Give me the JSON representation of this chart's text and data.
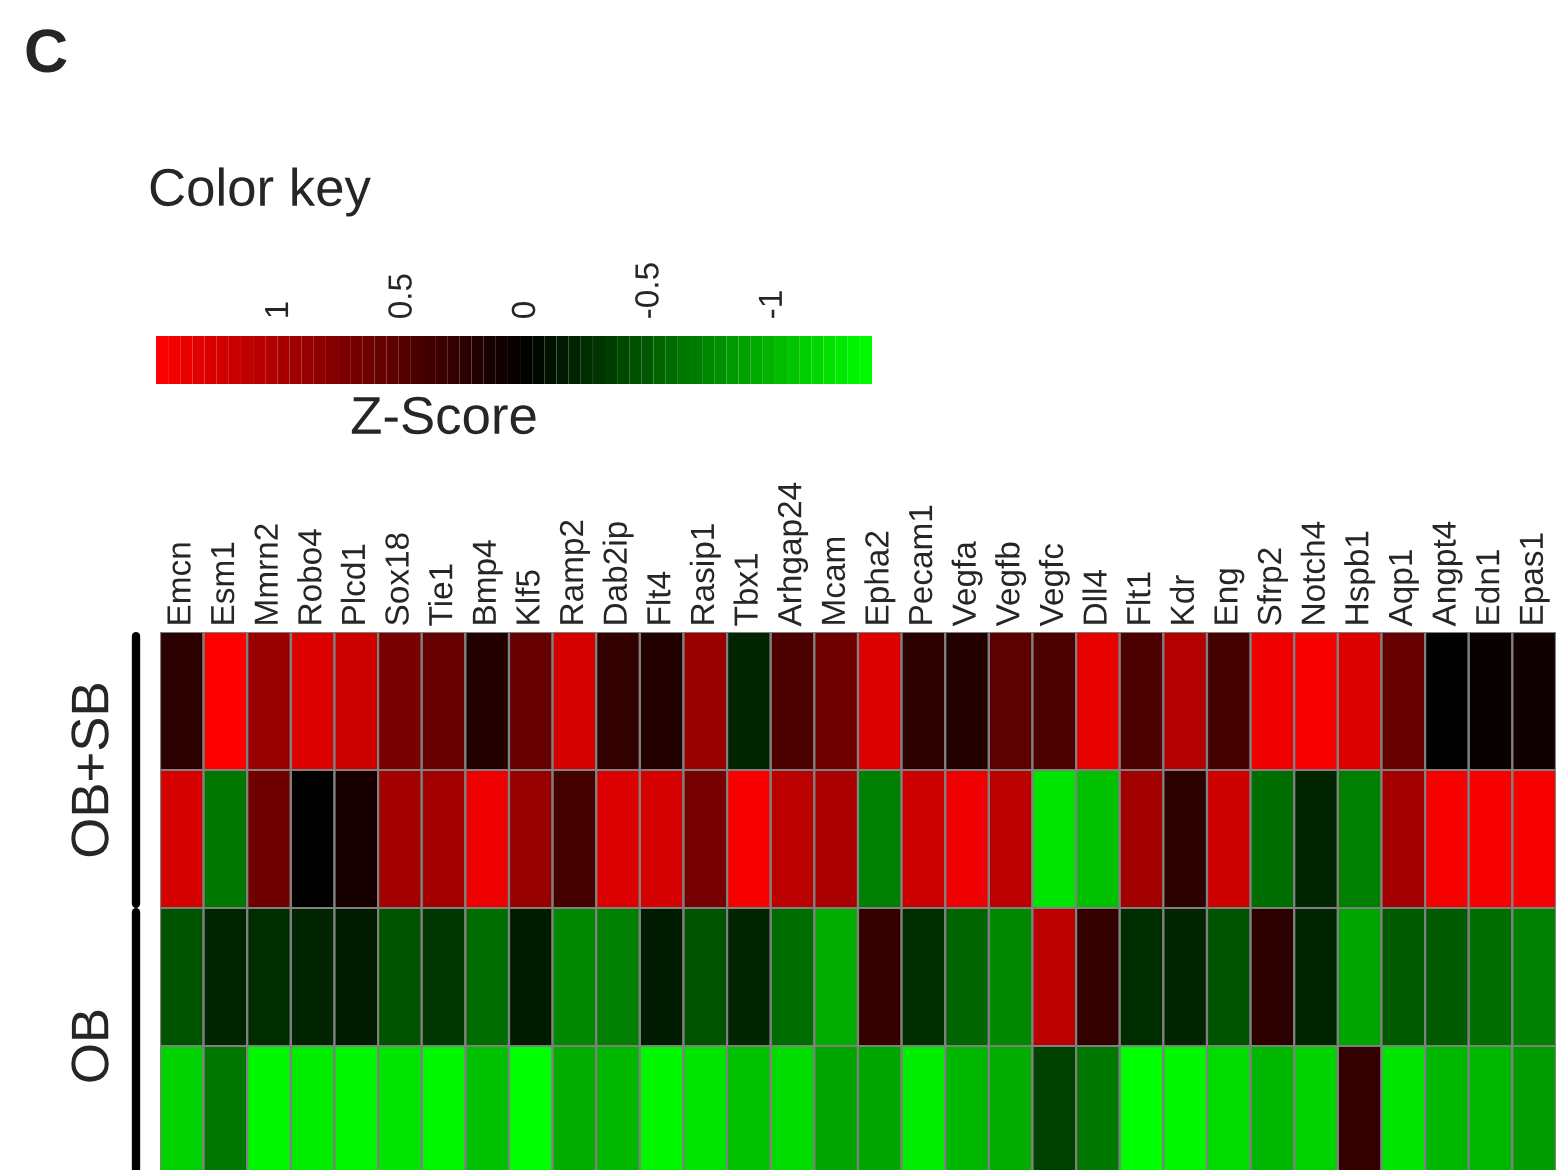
{
  "chart_data": {
    "type": "heatmap",
    "title": "C",
    "legend_title": "Color key",
    "clabel": "Z-Score",
    "annotations": [
      "OB+SB",
      "OB"
    ],
    "categories": [
      "Emcn",
      "Esm1",
      "Mmrn2",
      "Robo4",
      "Plcd1",
      "Sox18",
      "Tie1",
      "Bmp4",
      "Klf5",
      "Ramp2",
      "Dab2ip",
      "Flt4",
      "Rasip1",
      "Tbx1",
      "Arhgap24",
      "Mcam",
      "Epha2",
      "Pecam1",
      "Vegfa",
      "Vegfb",
      "Vegfc",
      "Dll4",
      "Flt1",
      "Kdr",
      "Eng",
      "Sfrp2",
      "Notch4",
      "Hspb1",
      "Aqp1",
      "Angpt4",
      "Edn1",
      "Epas1"
    ],
    "y_categories": [
      null,
      null,
      null,
      null
    ],
    "cells": [
      [
        0.25,
        1.5,
        0.9,
        1.3,
        1.2,
        0.7,
        0.6,
        0.2,
        0.6,
        1.25,
        0.3,
        0.2,
        0.9,
        -0.2,
        0.45,
        0.65,
        1.3,
        0.25,
        0.2,
        0.55,
        0.45,
        1.35,
        0.45,
        1.05,
        0.4,
        1.4,
        1.45,
        1.3,
        0.6,
        0,
        0.05,
        0.1
      ],
      [
        1.25,
        -0.65,
        0.65,
        0,
        0.15,
        0.95,
        0.95,
        1.4,
        0.9,
        0.4,
        1.3,
        1.25,
        0.7,
        1.45,
        1.1,
        1.0,
        -0.7,
        1.2,
        1.4,
        1.1,
        -1.25,
        -1.05,
        0.95,
        0.25,
        1.2,
        -0.6,
        -0.2,
        -0.7,
        0.95,
        1.45,
        1.45,
        1.45
      ],
      [
        -0.45,
        -0.2,
        -0.25,
        -0.2,
        -0.15,
        -0.45,
        -0.3,
        -0.6,
        -0.15,
        -0.75,
        -0.7,
        -0.15,
        -0.45,
        -0.2,
        -0.6,
        -0.95,
        0.3,
        -0.25,
        -0.55,
        -0.75,
        1.1,
        0.3,
        -0.25,
        -0.2,
        -0.45,
        0.25,
        -0.2,
        -0.9,
        -0.5,
        -0.5,
        -0.6,
        -0.7
      ],
      [
        -1.15,
        -0.65,
        -1.35,
        -1.3,
        -1.35,
        -1.25,
        -1.35,
        -1.05,
        -1.4,
        -0.95,
        -1.0,
        -1.35,
        -1.25,
        -1.05,
        -1.2,
        -0.9,
        -0.9,
        -1.3,
        -1.0,
        -0.95,
        -0.35,
        -0.65,
        -1.4,
        -1.35,
        -1.2,
        -1.0,
        -1.15,
        0.3,
        -1.25,
        -1.0,
        -1.0,
        -0.85
      ]
    ],
    "clim": [
      1.5,
      -1.4
    ],
    "cticks": [
      1,
      0.5,
      0,
      {
        "value": -0.5,
        "label": "-0.5"
      },
      {
        "value": -1,
        "label": "-1"
      }
    ]
  }
}
